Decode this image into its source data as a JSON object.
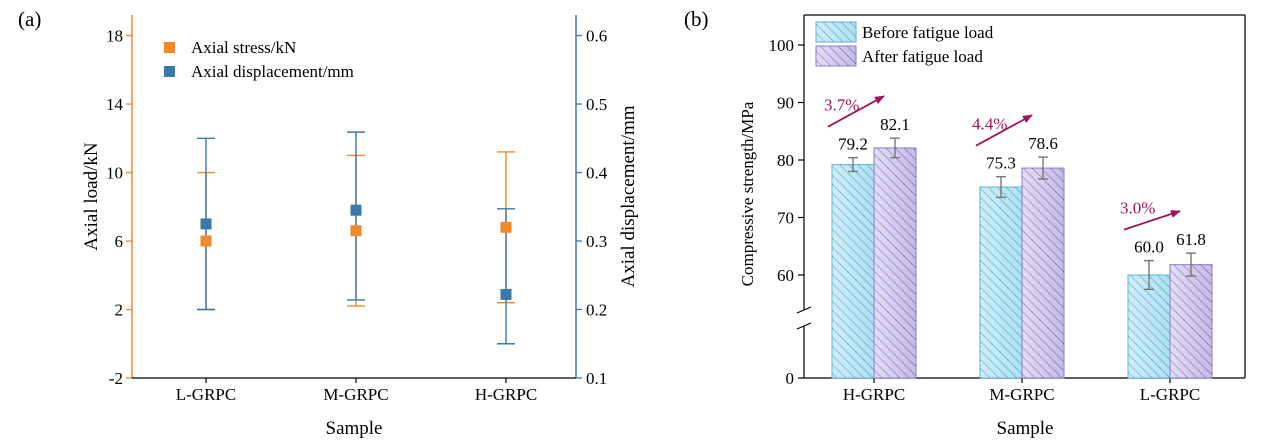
{
  "chart_data": [
    {
      "panel_label": "(a)",
      "type": "scatter",
      "xlabel": "Sample",
      "ylabel": "Axial load/kN",
      "y2label": "Axial displacement/mm",
      "categories": [
        "L-GRPC",
        "M-GRPC",
        "H-GRPC"
      ],
      "ylim": [
        -2,
        19.2
      ],
      "y2lim": [
        0.1,
        0.63
      ],
      "yticks": [
        -2,
        2,
        6,
        10,
        14,
        18
      ],
      "y2ticks": [
        "0.1",
        "0.2",
        "0.3",
        "0.4",
        "0.5",
        "0.6"
      ],
      "legend_position": "top-left",
      "series": [
        {
          "name": "Axial stress/kN",
          "axis": "left",
          "color": "#f0892a",
          "values": [
            6.0,
            6.6,
            6.8
          ],
          "err_low": [
            2.0,
            2.2,
            2.4
          ],
          "err_high": [
            10.0,
            11.0,
            11.2
          ]
        },
        {
          "name": "Axial displacement/mm",
          "axis": "right",
          "color": "#3a7aa8",
          "values": [
            0.325,
            0.345,
            0.222
          ],
          "err_low": [
            0.2,
            0.214,
            0.15
          ],
          "err_high": [
            0.45,
            0.459,
            0.347
          ]
        }
      ],
      "left_axis_color": "#f0892a",
      "right_axis_color": "#3a7aa8"
    },
    {
      "panel_label": "(b)",
      "type": "bar",
      "xlabel": "Sample",
      "ylabel": "Compressive strength/MPa",
      "categories": [
        "H-GRPC",
        "M-GRPC",
        "L-GRPC"
      ],
      "yticks": [
        "0",
        "60",
        "70",
        "80",
        "90",
        "100"
      ],
      "ylim_upper": [
        55,
        105
      ],
      "axis_break": true,
      "legend_position": "top-left",
      "series": [
        {
          "name": "Before fatigue load",
          "color": "#8fd3ec",
          "values": [
            79.2,
            75.3,
            60.0
          ],
          "errors": [
            1.2,
            1.8,
            2.5
          ],
          "labels": [
            "79.2",
            "75.3",
            "60.0"
          ]
        },
        {
          "name": "After fatigue load",
          "color": "#a99ad8",
          "values": [
            82.1,
            78.6,
            61.8
          ],
          "errors": [
            1.7,
            1.9,
            2.0
          ],
          "labels": [
            "82.1",
            "78.6",
            "61.8"
          ]
        }
      ],
      "annotations": [
        "3.7%",
        "4.4%",
        "3.0%"
      ],
      "annotation_color": "#a0155a"
    }
  ]
}
